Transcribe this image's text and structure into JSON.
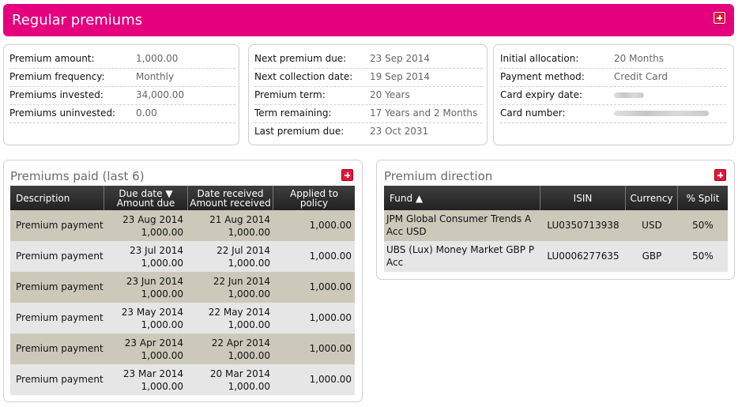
{
  "header": {
    "title": "Regular premiums"
  },
  "summary": {
    "col1": [
      {
        "label": "Premium amount:",
        "value": "1,000.00"
      },
      {
        "label": "Premium frequency:",
        "value": "Monthly"
      },
      {
        "label": "Premiums invested:",
        "value": "34,000.00"
      },
      {
        "label": "Premiums uninvested:",
        "value": "0.00"
      }
    ],
    "col2": [
      {
        "label": "Next premium due:",
        "value": "23 Sep 2014"
      },
      {
        "label": "Next collection date:",
        "value": "19 Sep 2014"
      },
      {
        "label": "Premium term:",
        "value": "20 Years"
      },
      {
        "label": "Term remaining:",
        "value": "17 Years and 2 Months"
      },
      {
        "label": "Last premium due:",
        "value": "23 Oct 2031"
      }
    ],
    "col3": [
      {
        "label": "Initial allocation:",
        "value": "20 Months"
      },
      {
        "label": "Payment method:",
        "value": "Credit Card"
      },
      {
        "label": "Card expiry date:",
        "value": ""
      },
      {
        "label": "Card number:",
        "value": ""
      }
    ]
  },
  "premiums_paid": {
    "title": "Premiums paid (last 6)",
    "headers": {
      "description": "Description",
      "due_date": "Due date ▼",
      "amount_due": "Amount due",
      "date_received": "Date received",
      "amount_received": "Amount received",
      "applied_1": "Applied to",
      "applied_2": "policy"
    },
    "rows": [
      {
        "description": "Premium payment",
        "due_date": "23 Aug 2014",
        "amount_due": "1,000.00",
        "date_received": "21 Aug 2014",
        "amount_received": "1,000.00",
        "applied": "1,000.00"
      },
      {
        "description": "Premium payment",
        "due_date": "23 Jul 2014",
        "amount_due": "1,000.00",
        "date_received": "22 Jul 2014",
        "amount_received": "1,000.00",
        "applied": "1,000.00"
      },
      {
        "description": "Premium payment",
        "due_date": "23 Jun 2014",
        "amount_due": "1,000.00",
        "date_received": "22 Jun 2014",
        "amount_received": "1,000.00",
        "applied": "1,000.00"
      },
      {
        "description": "Premium payment",
        "due_date": "23 May 2014",
        "amount_due": "1,000.00",
        "date_received": "22 May 2014",
        "amount_received": "1,000.00",
        "applied": "1,000.00"
      },
      {
        "description": "Premium payment",
        "due_date": "23 Apr 2014",
        "amount_due": "1,000.00",
        "date_received": "22 Apr 2014",
        "amount_received": "1,000.00",
        "applied": "1,000.00"
      },
      {
        "description": "Premium payment",
        "due_date": "23 Mar 2014",
        "amount_due": "1,000.00",
        "date_received": "20 Mar 2014",
        "amount_received": "1,000.00",
        "applied": "1,000.00"
      }
    ]
  },
  "premium_direction": {
    "title": "Premium direction",
    "headers": {
      "fund": "Fund ▲",
      "isin": "ISIN",
      "currency": "Currency",
      "split": "% Split"
    },
    "rows": [
      {
        "fund": "JPM Global Consumer Trends A Acc USD",
        "isin": "LU0350713938",
        "currency": "USD",
        "split": "50%"
      },
      {
        "fund": "UBS (Lux) Money Market GBP P Acc",
        "isin": "LU0006277635",
        "currency": "GBP",
        "split": "50%"
      }
    ]
  }
}
